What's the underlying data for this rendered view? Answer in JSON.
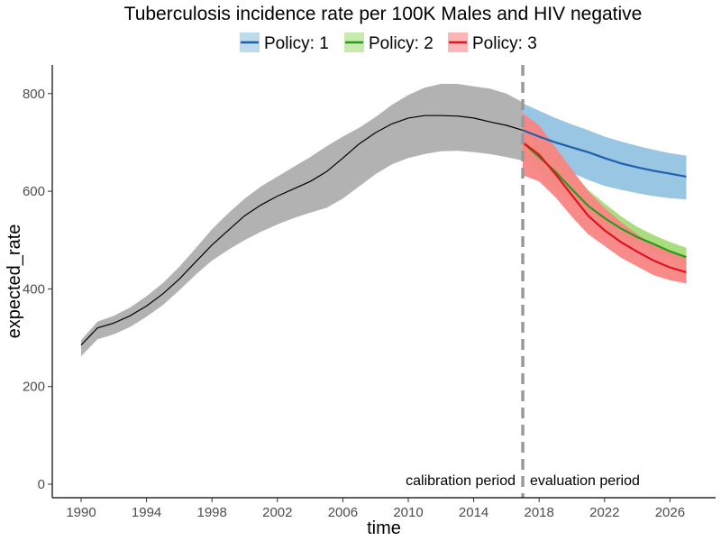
{
  "chart_data": {
    "type": "line",
    "title": "Tuberculosis incidence rate per 100K Males and HIV negative",
    "xlabel": "time",
    "ylabel": "expected_rate",
    "xlim": [
      1989,
      2028
    ],
    "ylim": [
      -20,
      860
    ],
    "x_ticks": [
      1990,
      1994,
      1998,
      2002,
      2006,
      2010,
      2014,
      2018,
      2022,
      2026
    ],
    "y_ticks": [
      0,
      200,
      400,
      600,
      800
    ],
    "grid": false,
    "legend_position": "top",
    "legend": [
      {
        "label": "Policy: 1",
        "line_color": "#1f5fb0",
        "fill_color": "#93c3e0"
      },
      {
        "label": "Policy: 2",
        "line_color": "#2a9a1f",
        "fill_color": "#a3dc78"
      },
      {
        "label": "Policy: 3",
        "line_color": "#e0141e",
        "fill_color": "#f88584"
      }
    ],
    "calibration": {
      "x": [
        1990,
        1991,
        1992,
        1993,
        1994,
        1995,
        1996,
        1997,
        1998,
        1999,
        2000,
        2001,
        2002,
        2003,
        2004,
        2005,
        2006,
        2007,
        2008,
        2009,
        2010,
        2011,
        2012,
        2013,
        2014,
        2015,
        2016,
        2017
      ],
      "y": [
        285,
        320,
        330,
        345,
        365,
        390,
        420,
        455,
        490,
        520,
        550,
        572,
        590,
        605,
        620,
        640,
        668,
        697,
        720,
        738,
        750,
        755,
        755,
        754,
        750,
        742,
        735,
        725
      ],
      "lower": [
        262,
        297,
        307,
        322,
        343,
        367,
        397,
        429,
        458,
        480,
        500,
        517,
        532,
        545,
        556,
        566,
        585,
        610,
        635,
        655,
        668,
        676,
        682,
        683,
        680,
        676,
        670,
        663
      ],
      "upper": [
        295,
        333,
        345,
        362,
        385,
        412,
        445,
        483,
        522,
        555,
        585,
        610,
        630,
        650,
        670,
        692,
        712,
        730,
        752,
        777,
        797,
        812,
        820,
        820,
        815,
        810,
        800,
        782
      ],
      "line_color": "#000000",
      "fill_color": "#b2b2b2"
    },
    "series": [
      {
        "name": "Policy: 1",
        "x": [
          2017,
          2018,
          2019,
          2020,
          2021,
          2022,
          2023,
          2024,
          2025,
          2026,
          2027
        ],
        "y": [
          725,
          712,
          700,
          690,
          680,
          668,
          657,
          649,
          642,
          636,
          630
        ],
        "lower": [
          705,
          677,
          655,
          638,
          623,
          611,
          603,
          596,
          590,
          586,
          583
        ],
        "upper": [
          780,
          765,
          750,
          737,
          725,
          712,
          702,
          693,
          685,
          678,
          673
        ],
        "line_color": "#1f5fb0",
        "fill_color": "#93c3e0"
      },
      {
        "name": "Policy: 2",
        "x": [
          2017,
          2018,
          2019,
          2020,
          2021,
          2022,
          2023,
          2024,
          2025,
          2026,
          2027
        ],
        "y": [
          700,
          670,
          640,
          604,
          570,
          545,
          524,
          506,
          492,
          477,
          465
        ],
        "lower": [
          670,
          640,
          610,
          577,
          550,
          525,
          503,
          486,
          472,
          460,
          450
        ],
        "upper": [
          745,
          714,
          682,
          640,
          603,
          575,
          549,
          527,
          510,
          496,
          484
        ],
        "line_color": "#2a9a1f",
        "fill_color": "#a3dc78"
      },
      {
        "name": "Policy: 3",
        "x": [
          2017,
          2018,
          2019,
          2020,
          2021,
          2022,
          2023,
          2024,
          2025,
          2026,
          2027
        ],
        "y": [
          700,
          675,
          635,
          592,
          550,
          520,
          496,
          476,
          458,
          444,
          434
        ],
        "lower": [
          633,
          620,
          588,
          548,
          512,
          488,
          464,
          446,
          428,
          418,
          411
        ],
        "upper": [
          760,
          735,
          690,
          645,
          600,
          566,
          537,
          512,
          491,
          476,
          465
        ],
        "line_color": "#e0141e",
        "fill_color": "#f88584"
      }
    ],
    "divider": {
      "x": 2017,
      "style": "dashed",
      "color": "#999999"
    },
    "annotations": [
      {
        "text": "calibration period",
        "x": 2017,
        "y": 0,
        "align": "right"
      },
      {
        "text": "evaluation period",
        "x": 2017,
        "y": 0,
        "align": "left"
      }
    ]
  }
}
